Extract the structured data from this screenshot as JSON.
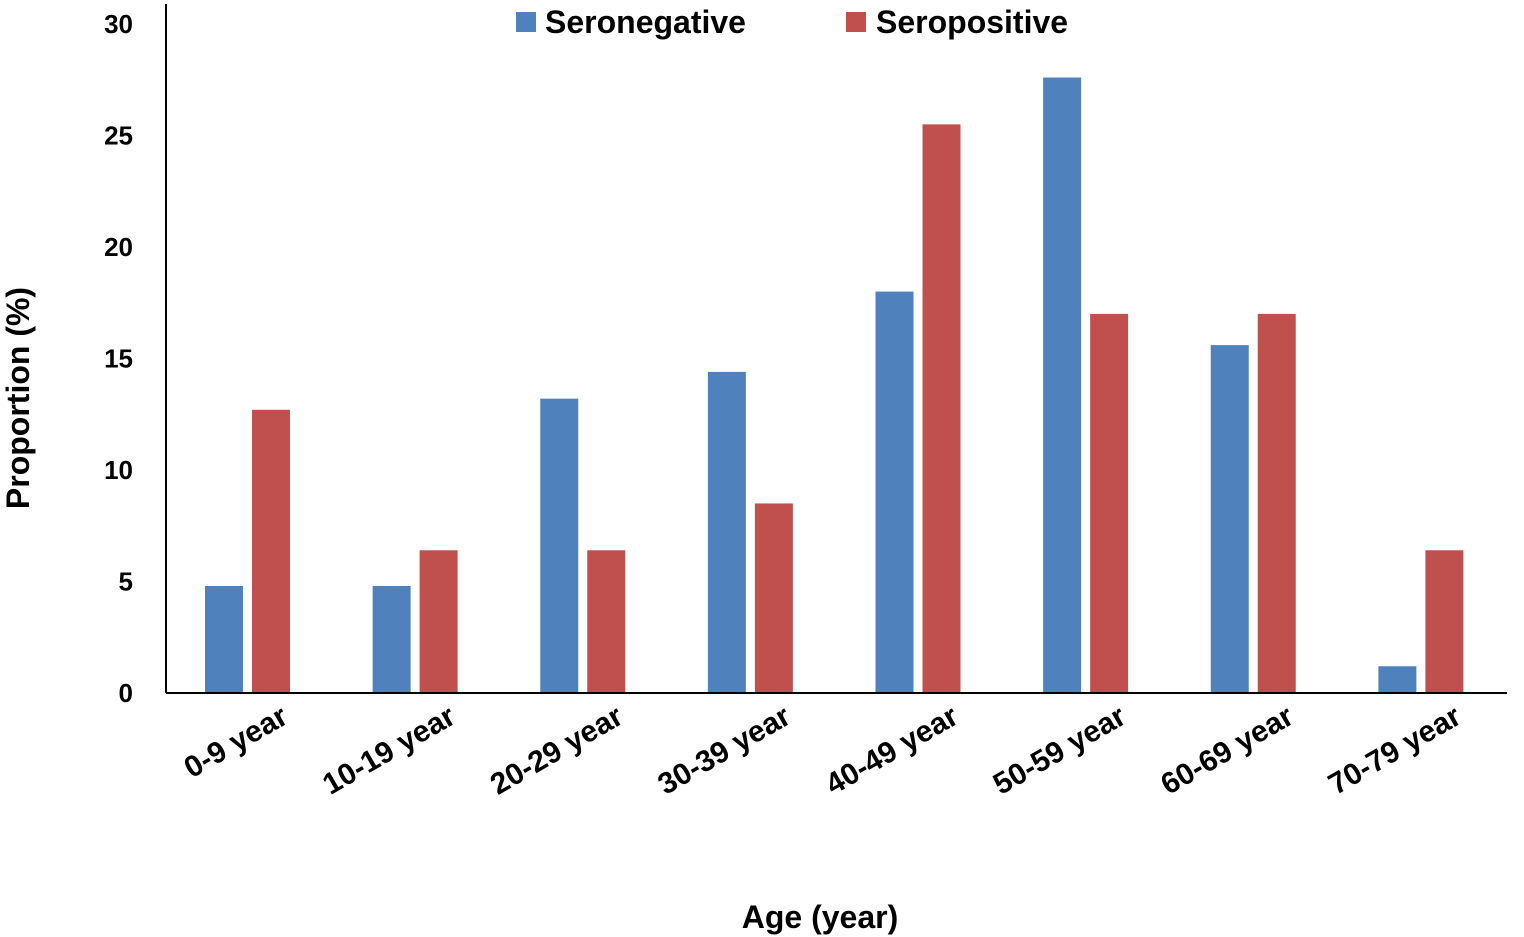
{
  "chart_data": {
    "type": "bar",
    "title": "",
    "xlabel": "Age (year)",
    "ylabel": "Proportion (%)",
    "ylim": [
      0,
      30
    ],
    "yticks": [
      0,
      5,
      10,
      15,
      20,
      25,
      30
    ],
    "grid": false,
    "legend_position": "top-center",
    "categories": [
      "0-9 year",
      "10-19 year",
      "20-29 year",
      "30-39 year",
      "40-49 year",
      "50-59 year",
      "60-69 year",
      "70-79 year"
    ],
    "series": [
      {
        "name": "Seronegative",
        "color": "#4F81BD",
        "values": [
          4.8,
          4.8,
          13.2,
          14.4,
          18.0,
          27.6,
          15.6,
          1.2
        ]
      },
      {
        "name": "Seropositive",
        "color": "#C0504D",
        "values": [
          12.7,
          6.4,
          6.4,
          8.5,
          25.5,
          17.0,
          17.0,
          6.4
        ]
      }
    ]
  }
}
